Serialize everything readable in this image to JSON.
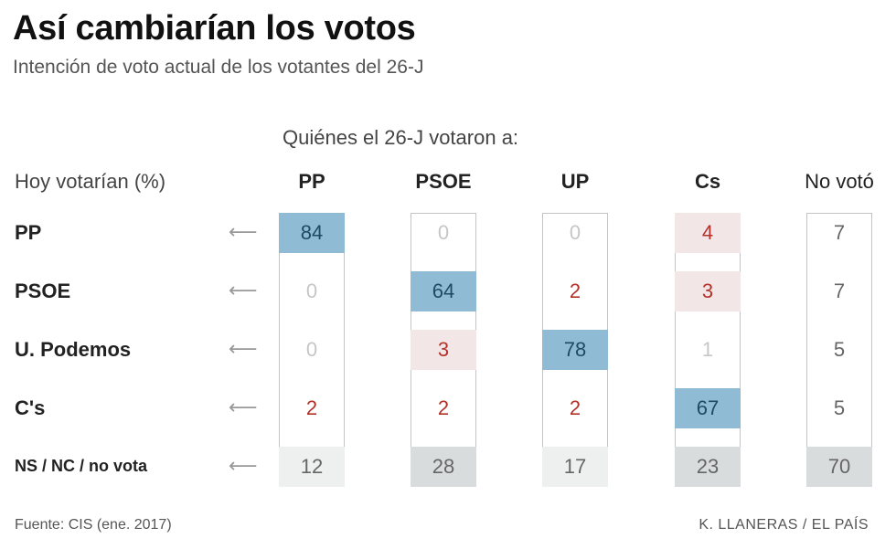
{
  "title": "Así cambiarían los votos",
  "subtitle": "Intención de voto actual de los votantes del 26-J",
  "question": "Quiénes el 26-J votaron a:",
  "row_header": "Hoy votarían (%)",
  "arrow_glyph": "⟵",
  "source": "Fuente: CIS (ene. 2017)",
  "credit": "K. LLANERAS  /  EL PAÍS",
  "colors": {
    "loyal": "#8fbcd4",
    "gain": "#f3e6e7",
    "undecided": "#d9dcdc",
    "undecided_light": "#eeefef",
    "red_text": "#b3322a",
    "zero_text": "#c6c6c6",
    "dark_text": "#1f4a63",
    "gray_text": "#666666"
  },
  "chart_data": {
    "type": "table",
    "title": "Así cambiarían los votos",
    "subtitle": "Intención de voto actual de los votantes del 26-J",
    "columns_header": "Quiénes el 26-J votaron a:",
    "rows_header": "Hoy votarían (%)",
    "columns": [
      "PP",
      "PSOE",
      "UP",
      "Cs",
      "No votó"
    ],
    "rows": [
      "PP",
      "PSOE",
      "U. Podemos",
      "C's",
      "NS / NC / no vota"
    ],
    "values": [
      [
        84,
        0,
        0,
        4,
        7
      ],
      [
        0,
        64,
        2,
        3,
        7
      ],
      [
        0,
        3,
        78,
        1,
        5
      ],
      [
        2,
        2,
        2,
        67,
        5
      ],
      [
        12,
        28,
        17,
        23,
        70
      ]
    ]
  }
}
